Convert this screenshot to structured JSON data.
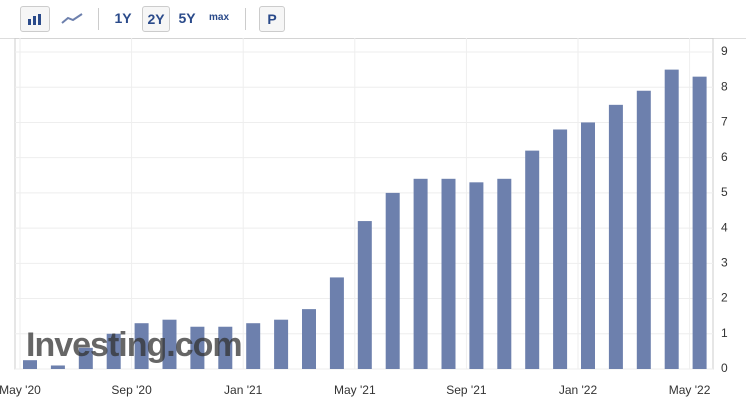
{
  "toolbar": {
    "ranges": [
      "1Y",
      "2Y",
      "5Y",
      "max"
    ],
    "extra": "P"
  },
  "chart_data": {
    "type": "bar",
    "watermark": "Investing.com",
    "color": "#6d80ad",
    "categories": [
      "May '20",
      null,
      null,
      null,
      "Sep '20",
      null,
      null,
      null,
      "Jan '21",
      null,
      null,
      null,
      "May '21",
      null,
      null,
      null,
      "Sep '21",
      null,
      null,
      null,
      "Jan '22",
      null,
      null,
      null,
      "May '22"
    ],
    "values": [
      0.25,
      0.1,
      0.6,
      1.0,
      1.3,
      1.4,
      1.2,
      1.2,
      1.3,
      1.4,
      1.7,
      2.6,
      4.2,
      5.0,
      5.4,
      5.4,
      5.3,
      5.4,
      6.2,
      6.8,
      7.0,
      7.5,
      7.9,
      8.5,
      8.3
    ],
    "ylim": [
      0,
      9
    ],
    "yticks": [
      0,
      1,
      2,
      3,
      4,
      5,
      6,
      7,
      8,
      9
    ],
    "grid": true
  }
}
